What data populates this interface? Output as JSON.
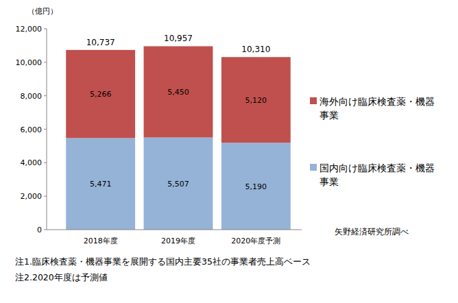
{
  "chart_data": {
    "type": "bar",
    "stacked": true,
    "data_labels": true,
    "grid": false,
    "legend": "right",
    "y_label": "（億円）",
    "categories": [
      "2018年度",
      "2019年度",
      "2020年度予測"
    ],
    "series": [
      {
        "name": "国内向け臨床検査薬・機器事業",
        "color": "#95b3d7",
        "values": [
          5471,
          5507,
          5190
        ],
        "value_labels": [
          "5,471",
          "5,507",
          "5,190"
        ]
      },
      {
        "name": "海外向け臨床検査薬・機器事業",
        "color": "#c0504d",
        "values": [
          5266,
          5450,
          5120
        ],
        "value_labels": [
          "5,266",
          "5,450",
          "5,120"
        ]
      }
    ],
    "totals": {
      "values": [
        10737,
        10957,
        10310
      ],
      "value_labels": [
        "10,737",
        "10,957",
        "10,310"
      ]
    },
    "ylim": [
      0,
      12000
    ],
    "yticks": [
      0,
      {
        "value": 2000,
        "label": "2,000"
      },
      {
        "value": 4000,
        "label": "4,000"
      },
      {
        "value": 6000,
        "label": "6,000"
      },
      {
        "value": 8000,
        "label": "8,000"
      },
      {
        "value": 10000,
        "label": "10,000"
      },
      {
        "value": 12000,
        "label": "12,000"
      }
    ],
    "source": "矢野経済研究所調べ",
    "notes": [
      "注1.臨床検査薬・機器事業を展開する国内主要35社の事業者売上高ベース",
      "注2.2020年度は予測値"
    ]
  }
}
